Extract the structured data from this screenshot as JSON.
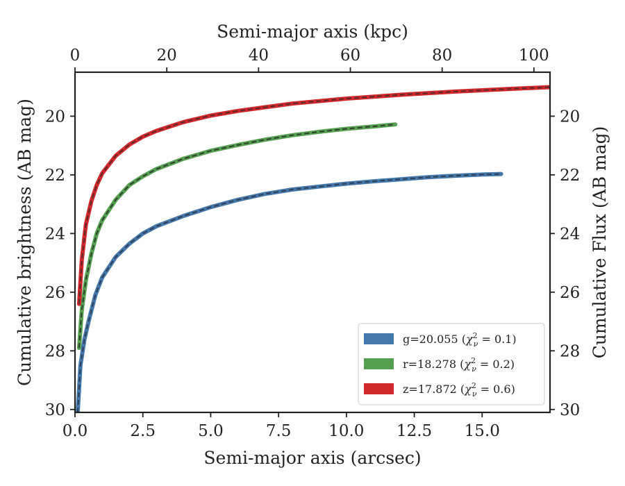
{
  "chart_data": {
    "type": "line",
    "x": {
      "label": "Semi-major axis (arcsec)",
      "lim": [
        0,
        17.5
      ],
      "ticks": [
        0.0,
        2.5,
        5.0,
        7.5,
        10.0,
        12.5,
        15.0
      ],
      "tick_labels": [
        "0.0",
        "2.5",
        "5.0",
        "7.5",
        "10.0",
        "12.5",
        "15.0"
      ]
    },
    "x_top": {
      "label": "Semi-major axis (kpc)",
      "lim": [
        0,
        103.5
      ],
      "ticks": [
        0,
        20,
        40,
        60,
        80,
        100
      ],
      "tick_labels": [
        "0",
        "20",
        "40",
        "60",
        "80",
        "100"
      ]
    },
    "y": {
      "label": "Cumulative brightness (AB mag)",
      "lim": [
        30.1,
        18.5
      ],
      "inverted": true,
      "ticks": [
        20,
        22,
        24,
        26,
        28,
        30
      ],
      "tick_labels": [
        "20",
        "22",
        "24",
        "26",
        "28",
        "30"
      ]
    },
    "y_right": {
      "label": "Cumulative Flux (AB mag)",
      "ticks": [
        20,
        22,
        24,
        26,
        28,
        30
      ],
      "tick_labels": [
        "20",
        "22",
        "24",
        "26",
        "28",
        "30"
      ]
    },
    "grid": false,
    "legend": {
      "placement": "lower-right",
      "entries": [
        {
          "label": "g=20.055 (χ²ν = 0.1)",
          "color": "#4477aa"
        },
        {
          "label": "r=18.278 (χ²ν = 0.2)",
          "color": "#55a050"
        },
        {
          "label": "z=17.872 (χ²ν = 0.6)",
          "color": "#d0282d"
        }
      ]
    },
    "series": [
      {
        "band": "g",
        "color": "#4477aa",
        "model_color": "#2f3f55",
        "x": [
          0.1,
          0.2,
          0.35,
          0.5,
          0.75,
          1.0,
          1.5,
          2.0,
          2.5,
          3.0,
          4.0,
          5.0,
          6.0,
          7.0,
          8.0,
          9.0,
          10.0,
          11.0,
          12.0,
          13.0,
          14.0,
          15.0,
          15.7
        ],
        "y": [
          30.1,
          28.5,
          27.6,
          27.0,
          26.1,
          25.5,
          24.8,
          24.35,
          24.0,
          23.75,
          23.4,
          23.1,
          22.85,
          22.65,
          22.5,
          22.4,
          22.3,
          22.22,
          22.15,
          22.08,
          22.03,
          21.99,
          21.97
        ]
      },
      {
        "band": "r",
        "color": "#55a050",
        "model_color": "#2f3f2f",
        "x": [
          0.15,
          0.25,
          0.4,
          0.6,
          0.8,
          1.0,
          1.5,
          2.0,
          2.5,
          3.0,
          4.0,
          5.0,
          6.0,
          7.0,
          8.0,
          9.0,
          10.0,
          11.0,
          11.8
        ],
        "y": [
          27.9,
          26.6,
          25.6,
          24.7,
          24.0,
          23.55,
          22.85,
          22.35,
          22.05,
          21.8,
          21.45,
          21.18,
          20.98,
          20.8,
          20.65,
          20.53,
          20.43,
          20.35,
          20.28
        ]
      },
      {
        "band": "z",
        "color": "#d0282d",
        "model_color": "#5a2a2a",
        "x": [
          0.15,
          0.25,
          0.4,
          0.6,
          0.8,
          1.0,
          1.5,
          2.0,
          2.5,
          3.0,
          4.0,
          5.0,
          6.0,
          8.0,
          10.0,
          12.0,
          14.0,
          16.0,
          17.5
        ],
        "y": [
          26.4,
          24.9,
          23.7,
          22.9,
          22.35,
          21.95,
          21.35,
          20.97,
          20.7,
          20.5,
          20.2,
          19.98,
          19.82,
          19.57,
          19.4,
          19.27,
          19.16,
          19.07,
          19.01
        ]
      }
    ]
  }
}
